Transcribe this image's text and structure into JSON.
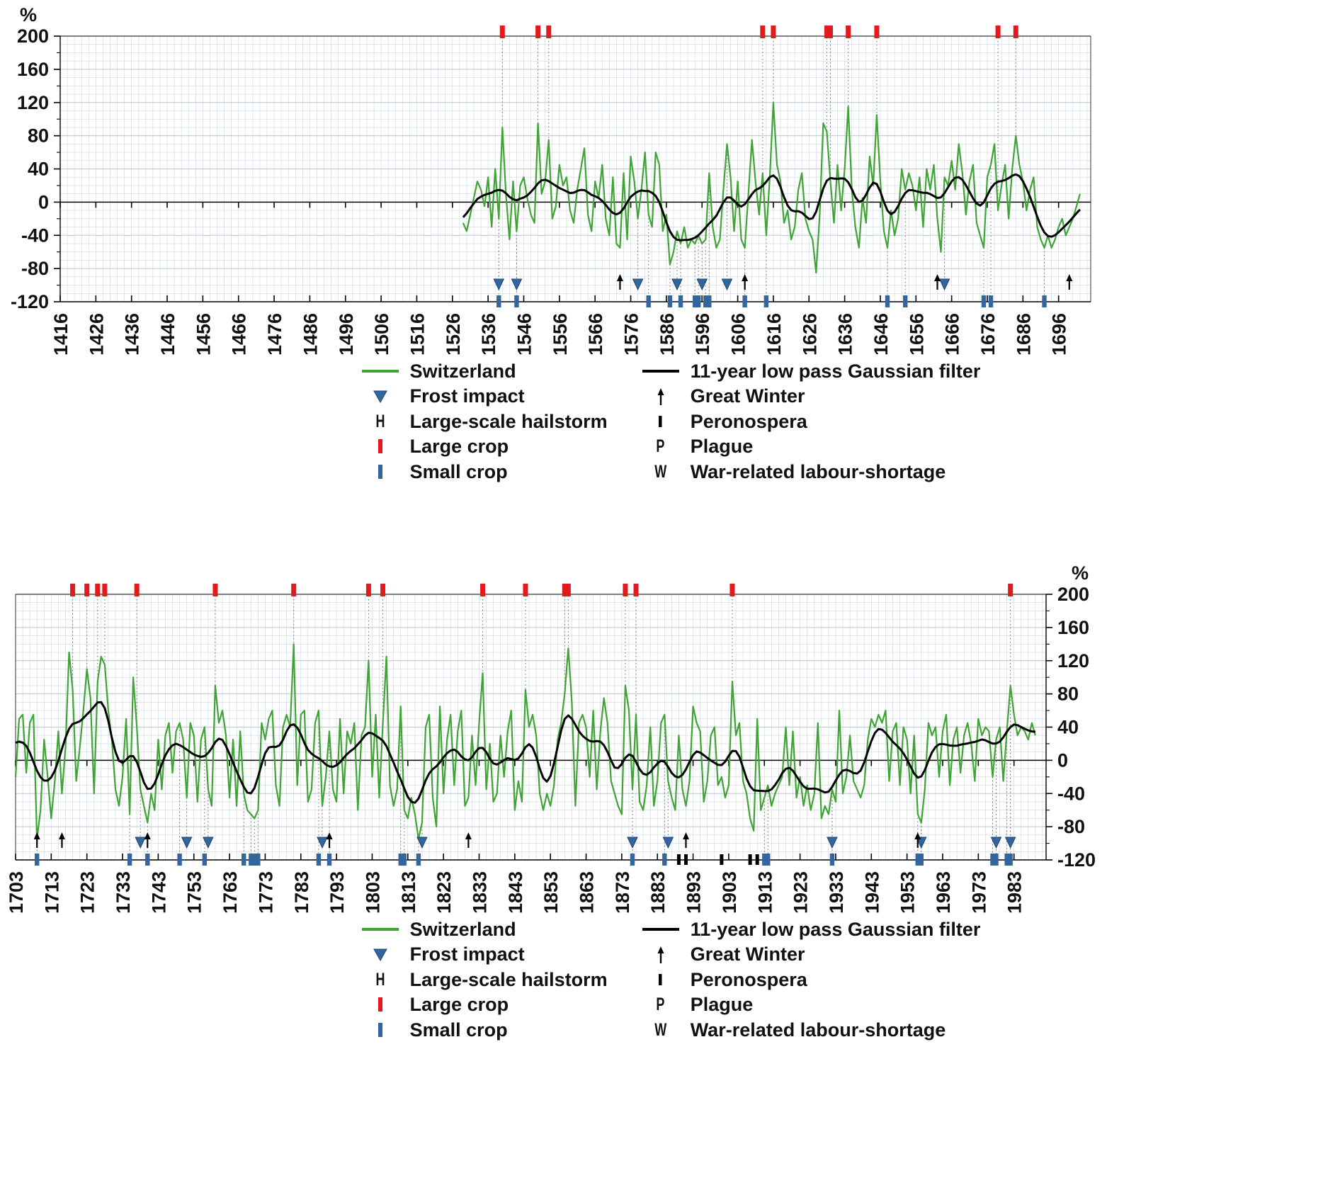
{
  "palette": {
    "switzerland": "#3fa435",
    "filter": "#000000",
    "large_crop": "#e01a1d",
    "small_crop": "#33669f",
    "frost": "#33669f",
    "great_winter": "#000000",
    "peronospera": "#000000",
    "grid": "#cdd7e0",
    "grid_major": "#bac6d2",
    "axis": "#000000",
    "dotted": "#6b6b6b"
  },
  "legend": {
    "col1": [
      {
        "symbol": "line-green",
        "label": "Switzerland"
      },
      {
        "symbol": "frost-triangle",
        "label": "Frost impact"
      },
      {
        "symbol": "letter",
        "glyph": "H",
        "label": "Large-scale hailstorm"
      },
      {
        "symbol": "bar-red",
        "label": "Large crop"
      },
      {
        "symbol": "bar-blue",
        "label": "Small crop"
      }
    ],
    "col2": [
      {
        "symbol": "line-black",
        "label": "11-year low pass Gaussian filter"
      },
      {
        "symbol": "arrow-up",
        "label": "Great Winter"
      },
      {
        "symbol": "bar-black",
        "label": "Peronospera"
      },
      {
        "symbol": "letter",
        "glyph": "P",
        "label": "Plague"
      },
      {
        "symbol": "letter",
        "glyph": "W",
        "label": "War-related labour-shortage"
      }
    ]
  },
  "chart_data": [
    {
      "type": "line",
      "percent_label": "%",
      "y_axis_side": "left",
      "ylim": [
        -120,
        200
      ],
      "yticks": [
        200,
        160,
        120,
        80,
        40,
        0,
        -40,
        -80,
        -120
      ],
      "x_range": [
        1416,
        1705
      ],
      "xticks": [
        1416,
        1426,
        1436,
        1446,
        1456,
        1466,
        1476,
        1486,
        1496,
        1506,
        1516,
        1526,
        1536,
        1546,
        1556,
        1566,
        1576,
        1586,
        1596,
        1606,
        1616,
        1626,
        1636,
        1646,
        1656,
        1666,
        1676,
        1686,
        1696
      ],
      "grid": true,
      "legend_position": "below",
      "series": [
        {
          "name": "Switzerland",
          "x_start": 1529,
          "values": [
            -25,
            -35,
            -15,
            5,
            25,
            15,
            -5,
            30,
            -30,
            40,
            -20,
            90,
            10,
            -45,
            25,
            -35,
            20,
            30,
            5,
            -15,
            -25,
            95,
            10,
            25,
            75,
            -20,
            -5,
            45,
            20,
            30,
            -10,
            -25,
            15,
            40,
            65,
            -15,
            -35,
            25,
            5,
            45,
            -20,
            -40,
            30,
            -50,
            -55,
            35,
            -45,
            55,
            25,
            -20,
            15,
            60,
            -15,
            -30,
            60,
            45,
            -35,
            -15,
            -75,
            -60,
            -35,
            -50,
            -30,
            -55,
            -45,
            -50,
            -40,
            -50,
            -45,
            35,
            -30,
            -55,
            -45,
            15,
            70,
            30,
            -35,
            25,
            -45,
            -55,
            10,
            75,
            25,
            -15,
            35,
            -40,
            30,
            120,
            45,
            25,
            -25,
            -10,
            -45,
            -30,
            15,
            35,
            -20,
            -35,
            -45,
            -85,
            -15,
            95,
            85,
            25,
            -25,
            45,
            -10,
            40,
            115,
            15,
            -30,
            -55,
            5,
            -25,
            55,
            20,
            105,
            25,
            -35,
            -55,
            -10,
            -40,
            -20,
            40,
            15,
            35,
            20,
            -10,
            30,
            -30,
            40,
            15,
            45,
            -20,
            -60,
            30,
            20,
            50,
            15,
            70,
            35,
            -15,
            25,
            45,
            -25,
            -40,
            -55,
            30,
            45,
            70,
            -10,
            20,
            45,
            -20,
            40,
            80,
            45,
            25,
            -10,
            15,
            30,
            -30,
            -45,
            -55,
            -40,
            -55,
            -45,
            -30,
            -20,
            -40,
            -30,
            -20,
            -5,
            10
          ]
        },
        {
          "name": "11-year low pass Gaussian filter",
          "derived_from": "Switzerland",
          "method": "gaussian_smooth_sigma_2.2_window_11"
        }
      ],
      "events": {
        "large_crop": [
          1540,
          1550,
          1553,
          1613,
          1616,
          1631,
          1632,
          1637,
          1645,
          1679,
          1684
        ],
        "frost_impact": [
          1539,
          1544,
          1578,
          1589,
          1596,
          1603,
          1664
        ],
        "great_winter": [
          1573,
          1608,
          1662,
          1699
        ],
        "small_crop": [
          1539,
          1544,
          1581,
          1587,
          1590,
          1594,
          1595,
          1597,
          1598,
          1608,
          1614,
          1648,
          1653,
          1675,
          1677,
          1692
        ],
        "peronospera": []
      }
    },
    {
      "type": "line",
      "percent_label": "%",
      "y_axis_side": "right",
      "ylim": [
        -120,
        200
      ],
      "yticks": [
        200,
        160,
        120,
        80,
        40,
        0,
        -40,
        -80,
        -120
      ],
      "x_range": [
        1703,
        1992
      ],
      "xticks": [
        1703,
        1713,
        1723,
        1733,
        1743,
        1753,
        1763,
        1773,
        1783,
        1793,
        1803,
        1813,
        1823,
        1833,
        1843,
        1853,
        1863,
        1873,
        1883,
        1893,
        1903,
        1913,
        1923,
        1933,
        1943,
        1953,
        1963,
        1973,
        1983
      ],
      "grid": true,
      "legend_position": "below",
      "series": [
        {
          "name": "Switzerland",
          "x_start": 1703,
          "values": [
            -20,
            50,
            55,
            -15,
            45,
            55,
            -95,
            -60,
            25,
            -20,
            -70,
            -25,
            35,
            -40,
            15,
            130,
            85,
            -25,
            15,
            60,
            110,
            75,
            -40,
            95,
            125,
            115,
            60,
            25,
            -35,
            -55,
            -20,
            50,
            -65,
            100,
            40,
            -35,
            -55,
            -75,
            -40,
            -60,
            25,
            -35,
            30,
            45,
            -15,
            35,
            45,
            25,
            -45,
            45,
            30,
            -50,
            25,
            40,
            -35,
            -55,
            90,
            45,
            60,
            30,
            -45,
            25,
            -55,
            35,
            -40,
            -60,
            -65,
            -70,
            -60,
            45,
            25,
            50,
            60,
            -30,
            -55,
            40,
            55,
            40,
            140,
            -30,
            55,
            60,
            -50,
            -35,
            45,
            60,
            -55,
            -20,
            35,
            -35,
            -50,
            50,
            -40,
            35,
            20,
            45,
            -60,
            30,
            40,
            120,
            -20,
            55,
            -45,
            45,
            125,
            -30,
            -55,
            -35,
            65,
            -60,
            -70,
            -45,
            -65,
            -95,
            -75,
            40,
            55,
            -45,
            -80,
            65,
            -40,
            25,
            55,
            -30,
            35,
            60,
            -55,
            -45,
            30,
            -30,
            45,
            105,
            -35,
            20,
            -50,
            -40,
            30,
            -20,
            35,
            60,
            -60,
            -25,
            -50,
            85,
            40,
            55,
            30,
            -40,
            -60,
            -40,
            -55,
            -30,
            25,
            45,
            80,
            135,
            70,
            -55,
            45,
            55,
            40,
            -20,
            60,
            -35,
            35,
            75,
            45,
            -25,
            -40,
            -55,
            -65,
            90,
            60,
            -35,
            55,
            -50,
            -60,
            -30,
            40,
            -55,
            -25,
            45,
            55,
            -25,
            -45,
            -60,
            30,
            -35,
            -55,
            -25,
            65,
            45,
            35,
            -50,
            -25,
            30,
            40,
            -30,
            -20,
            -45,
            -30,
            95,
            30,
            45,
            -25,
            -40,
            -70,
            -85,
            50,
            -60,
            -45,
            -30,
            -55,
            -40,
            -30,
            -20,
            40,
            -30,
            35,
            -45,
            -20,
            -55,
            -30,
            -60,
            -40,
            45,
            -70,
            -55,
            -65,
            -35,
            -50,
            60,
            -40,
            -20,
            30,
            -25,
            -35,
            -45,
            -30,
            25,
            50,
            40,
            55,
            45,
            60,
            -25,
            35,
            45,
            -30,
            40,
            25,
            -40,
            30,
            -65,
            -75,
            -35,
            45,
            30,
            40,
            -20,
            35,
            55,
            -30,
            25,
            40,
            -15,
            30,
            45,
            20,
            -25,
            50,
            30,
            40,
            35,
            -20,
            25,
            40,
            -25,
            35,
            90,
            55,
            30,
            40,
            35,
            25,
            45,
            30
          ]
        },
        {
          "name": "11-year low pass Gaussian filter",
          "derived_from": "Switzerland",
          "method": "gaussian_smooth_sigma_2.2_window_11"
        }
      ],
      "events": {
        "large_crop": [
          1719,
          1723,
          1726,
          1728,
          1737,
          1759,
          1781,
          1802,
          1806,
          1834,
          1846,
          1857,
          1858,
          1874,
          1877,
          1904,
          1982
        ],
        "frost_impact": [
          1738,
          1751,
          1757,
          1789,
          1817,
          1876,
          1886,
          1932,
          1957,
          1978,
          1982
        ],
        "great_winter": [
          1709,
          1716,
          1740,
          1791,
          1830,
          1891,
          1956
        ],
        "small_crop": [
          1709,
          1735,
          1740,
          1749,
          1756,
          1767,
          1769,
          1770,
          1771,
          1788,
          1791,
          1811,
          1812,
          1816,
          1876,
          1885,
          1913,
          1914,
          1932,
          1956,
          1957,
          1977,
          1978,
          1981,
          1982
        ],
        "peronospera": [
          1889,
          1891,
          1901,
          1909,
          1911
        ]
      }
    }
  ]
}
